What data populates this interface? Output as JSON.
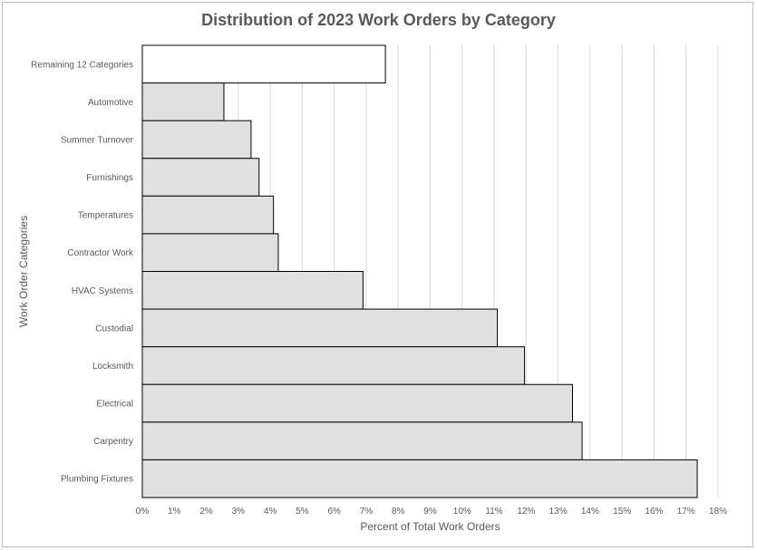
{
  "chart_data": {
    "type": "bar",
    "orientation": "horizontal",
    "title": "Distribution of 2023 Work Orders by Category",
    "xlabel": "Percent of Total Work Orders",
    "ylabel": "Work Order Categories",
    "xlim": [
      0,
      18
    ],
    "x_ticks": [
      "0%",
      "1%",
      "2%",
      "3%",
      "4%",
      "5%",
      "6%",
      "7%",
      "8%",
      "9%",
      "10%",
      "11%",
      "12%",
      "13%",
      "14%",
      "15%",
      "16%",
      "17%",
      "18%"
    ],
    "grid": "vertical",
    "categories": [
      "Remaining 12 Categories",
      "Automotive",
      "Summer Turnover",
      "Furnishings",
      "Temperatures",
      "Contractor Work",
      "HVAC Systems",
      "Custodial",
      "Locksmith",
      "Electrical",
      "Carpentry",
      "Plumbing Fixtures"
    ],
    "values": [
      7.6,
      2.55,
      3.4,
      3.65,
      4.1,
      4.25,
      6.9,
      11.1,
      11.95,
      13.45,
      13.75,
      17.35
    ],
    "colors": {
      "bar_fill": "#e0e0e0",
      "highlight_fill": "#ffffff",
      "bar_stroke": "#000000",
      "grid": "#d9d9d9",
      "text": "#595959"
    },
    "highlight_category": "Remaining 12 Categories"
  }
}
